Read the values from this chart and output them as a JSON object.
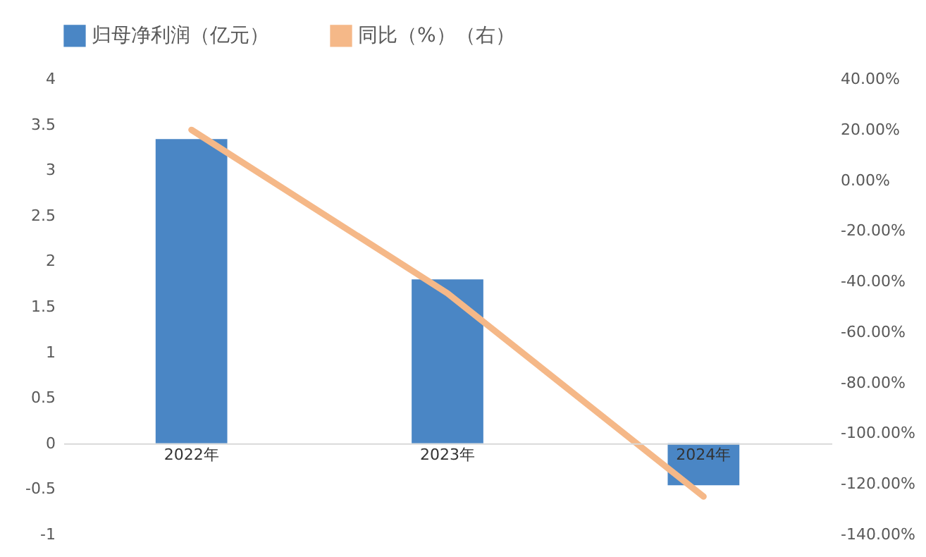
{
  "chart_data": {
    "type": "bar",
    "categories": [
      "2022年",
      "2023年",
      "2024年"
    ],
    "series": [
      {
        "name": "归母净利润（亿元）",
        "color": "#4a86c5",
        "values": [
          3.34,
          1.8,
          -0.46
        ]
      },
      {
        "name": "同比（%）（右）",
        "type": "line",
        "axis": "y2",
        "color": "#f5b888",
        "values": [
          19.9,
          -44.7,
          -125
        ]
      }
    ],
    "ylim": [
      -1,
      4
    ],
    "yticks": [
      -1,
      -0.5,
      0,
      0.5,
      1,
      1.5,
      2,
      2.5,
      3,
      3.5,
      4
    ],
    "y2lim": [
      -140,
      40
    ],
    "y2ticks": [
      {
        "value": -140,
        "label": "-140.00%"
      },
      {
        "value": -120,
        "label": "-120.00%"
      },
      {
        "value": -100,
        "label": "-100.00%"
      },
      {
        "value": -80,
        "label": "-80.00%"
      },
      {
        "value": -60,
        "label": "-60.00%"
      },
      {
        "value": -40,
        "label": "-40.00%"
      },
      {
        "value": -20,
        "label": "-20.00%"
      },
      {
        "value": 0,
        "label": "0.00%"
      },
      {
        "value": 20,
        "label": "20.00%"
      },
      {
        "value": 40,
        "label": "40.00%"
      }
    ],
    "legend": "top",
    "grid": false
  }
}
